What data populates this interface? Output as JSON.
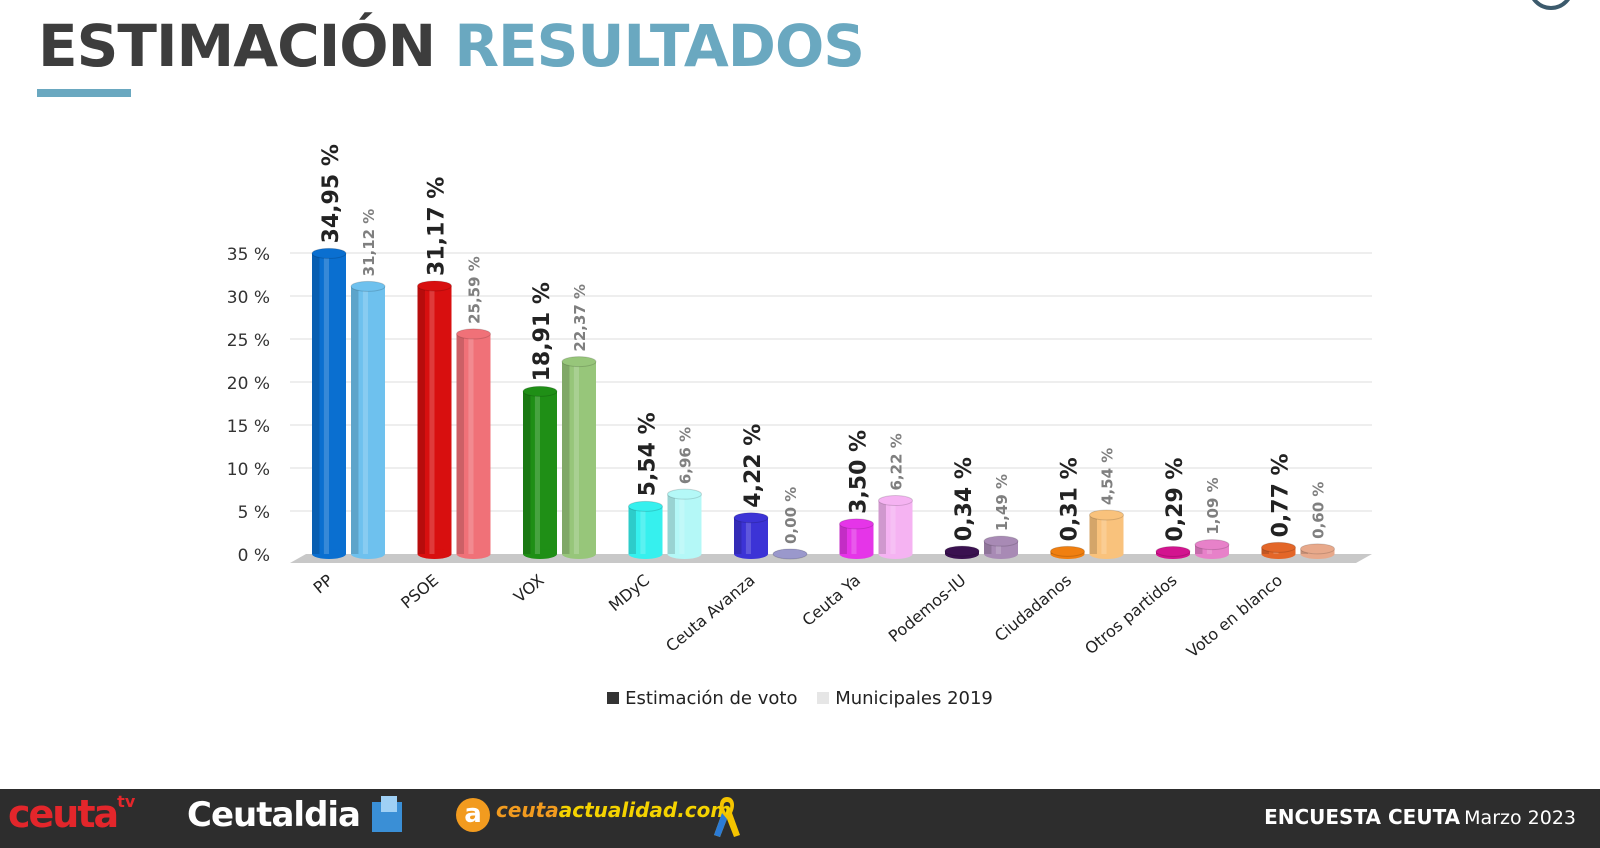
{
  "header": {
    "title_part1": "ESTIMACIÓN",
    "title_part2": "RESULTADOS"
  },
  "chart_data": {
    "type": "bar",
    "categories": [
      "PP",
      "PSOE",
      "VOX",
      "MDyC",
      "Ceuta Avanza",
      "Ceuta Ya",
      "Podemos-IU",
      "Ciudadanos",
      "Otros partidos",
      "Voto en blanco"
    ],
    "series": [
      {
        "name": "Estimación de voto",
        "values": [
          34.95,
          31.17,
          18.91,
          5.54,
          4.22,
          3.5,
          0.34,
          0.31,
          0.29,
          0.77
        ],
        "labels": [
          "34,95 %",
          "31,17 %",
          "18,91 %",
          "5,54 %",
          "4,22 %",
          "3,50 %",
          "0,34 %",
          "0,31 %",
          "0,29 %",
          "0,77 %"
        ]
      },
      {
        "name": "Municipales 2019",
        "values": [
          31.12,
          25.59,
          22.37,
          6.96,
          0.0,
          6.22,
          1.49,
          4.54,
          1.09,
          0.6
        ],
        "labels": [
          "31,12 %",
          "25,59 %",
          "22,37 %",
          "6,96 %",
          "0,00 %",
          "6,22 %",
          "1,49 %",
          "4,54 %",
          "1,09 %",
          "0,60 %"
        ]
      }
    ],
    "colors_estimacion": [
      "#0a6fd0",
      "#d80f0f",
      "#1f8f16",
      "#36f0ee",
      "#3c33d6",
      "#e535e8",
      "#3a1150",
      "#f07f10",
      "#d3148f",
      "#e36628"
    ],
    "colors_municipales": [
      "#6ec1ee",
      "#f07178",
      "#97c67a",
      "#b4f8f7",
      "#9a98cc",
      "#f5b3f2",
      "#a88ab5",
      "#f9c27c",
      "#e781c9",
      "#e8a98b"
    ],
    "y_ticks": [
      "0 %",
      "5 %",
      "10 %",
      "15 %",
      "20 %",
      "25 %",
      "30 %",
      "35 %"
    ],
    "ylim": [
      0,
      35
    ],
    "legend_position": "bottom",
    "grid": true,
    "legend_swatch_colors": [
      "#333333",
      "#e6e6e6"
    ]
  },
  "footer": {
    "logo1_text": "ceuta",
    "logo1_sup": "tv",
    "logo2_text": "Ceutaldia",
    "logo3_icon": "a",
    "logo3_text_part1": "ceuta",
    "logo3_text_part2": "actualidad.com",
    "survey_title": "ENCUESTA CEUTA",
    "survey_date": "Marzo 2023"
  }
}
